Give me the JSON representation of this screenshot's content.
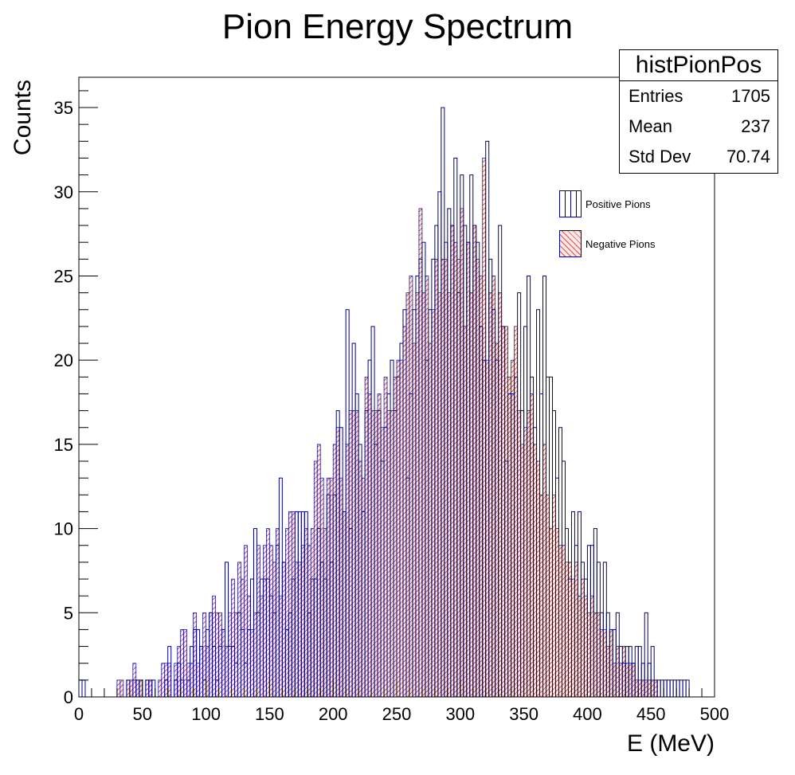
{
  "chart_data": {
    "type": "bar",
    "title": "Pion Energy Spectrum",
    "xlabel": "E (MeV)",
    "ylabel": "Counts",
    "xlim": [
      0,
      500
    ],
    "ylim": [
      0,
      36.8
    ],
    "x_ticks": [
      0,
      50,
      100,
      150,
      200,
      250,
      300,
      350,
      400,
      450,
      500
    ],
    "y_ticks": [
      0,
      5,
      10,
      15,
      20,
      25,
      30,
      35
    ],
    "bin_width": 2.5,
    "grid": false,
    "legend_position": "top-right",
    "series": [
      {
        "name": "Positive Pions",
        "color": "#00008b",
        "fill": "vertical-hatch",
        "values": [
          1,
          1,
          0,
          0,
          0,
          0,
          0,
          0,
          0,
          0,
          0,
          0,
          0,
          0,
          0,
          1,
          0,
          1,
          1,
          1,
          0,
          1,
          1,
          1,
          0,
          0,
          0,
          1,
          3,
          0,
          1,
          2,
          1,
          0,
          1,
          3,
          4,
          4,
          3,
          1,
          4,
          5,
          3,
          1,
          3,
          4,
          8,
          3,
          3,
          2,
          5,
          4,
          2,
          4,
          7,
          10,
          5,
          7,
          7,
          7,
          6,
          5,
          9,
          13,
          8,
          4,
          5,
          7,
          11,
          11,
          11,
          11,
          5,
          7,
          7,
          10,
          8,
          7,
          12,
          8,
          12,
          17,
          16,
          11,
          23,
          10,
          21,
          18,
          15,
          11,
          17,
          20,
          22,
          15,
          17,
          14,
          16,
          18,
          20,
          17,
          19,
          21,
          23,
          13,
          18,
          23,
          25,
          26,
          27,
          20,
          23,
          26,
          28,
          30,
          35,
          27,
          29,
          28,
          32,
          24,
          31,
          28,
          27,
          31,
          28,
          27,
          22,
          20,
          33,
          26,
          23,
          20,
          28,
          22,
          14,
          18,
          18,
          19,
          24,
          17,
          22,
          25,
          19,
          16,
          23,
          18,
          25,
          19,
          19,
          17,
          13,
          16,
          14,
          10,
          7,
          11,
          9,
          11,
          8,
          7,
          9,
          9,
          10,
          8,
          5,
          8,
          5,
          4,
          4,
          5,
          3,
          2,
          3,
          3,
          2,
          3,
          3,
          2,
          5,
          2,
          3,
          1,
          1,
          1,
          1,
          1,
          1,
          1,
          1,
          1,
          1,
          1,
          0,
          0,
          0,
          0,
          0,
          0,
          0,
          0,
          0,
          0,
          0,
          0,
          0,
          0,
          0,
          0,
          0,
          0,
          0,
          0,
          0,
          0,
          0,
          0
        ]
      },
      {
        "name": "Negative Pions",
        "color": "#e05050",
        "fill": "diagonal-hatch",
        "values": [
          0,
          0,
          0,
          0,
          0,
          0,
          0,
          0,
          0,
          0,
          0,
          0,
          1,
          1,
          0,
          1,
          1,
          2,
          1,
          1,
          0,
          1,
          1,
          0,
          0,
          1,
          2,
          2,
          2,
          0,
          2,
          3,
          4,
          4,
          2,
          2,
          5,
          2,
          3,
          5,
          3,
          5,
          6,
          5,
          5,
          4,
          3,
          5,
          7,
          5,
          8,
          7,
          9,
          6,
          4,
          5,
          9,
          6,
          9,
          10,
          9,
          8,
          10,
          6,
          8,
          10,
          11,
          11,
          8,
          8,
          9,
          10,
          9,
          10,
          14,
          15,
          13,
          10,
          13,
          13,
          15,
          16,
          13,
          11,
          15,
          17,
          17,
          17,
          14,
          13,
          19,
          18,
          17,
          17,
          18,
          16,
          19,
          17,
          17,
          19,
          20,
          20,
          22,
          24,
          25,
          21,
          24,
          29,
          24,
          25,
          21,
          23,
          26,
          24,
          26,
          26,
          24,
          28,
          27,
          26,
          29,
          22,
          27,
          24,
          28,
          26,
          25,
          32,
          20,
          24,
          25,
          21,
          24,
          22,
          22,
          19,
          20,
          22,
          17,
          15,
          16,
          17,
          18,
          15,
          14,
          12,
          15,
          12,
          10,
          12,
          10,
          9,
          9,
          8,
          8,
          7,
          8,
          6,
          7,
          6,
          5,
          6,
          5,
          5,
          4,
          4,
          3,
          4,
          2,
          3,
          2,
          3,
          2,
          2,
          2,
          1,
          1,
          1,
          1,
          1,
          1,
          1,
          0,
          0,
          0,
          0,
          0,
          0,
          0,
          0,
          0,
          0,
          0,
          0,
          0,
          0,
          0,
          0,
          0,
          0,
          0,
          0,
          0,
          0,
          0,
          0,
          0,
          0,
          0,
          0,
          0,
          0
        ]
      }
    ]
  },
  "stats": {
    "name": "histPionPos",
    "entries_label": "Entries",
    "entries_value": "1705",
    "mean_label": "Mean",
    "mean_value": "237",
    "stddev_label": "Std Dev",
    "stddev_value": "70.74"
  }
}
